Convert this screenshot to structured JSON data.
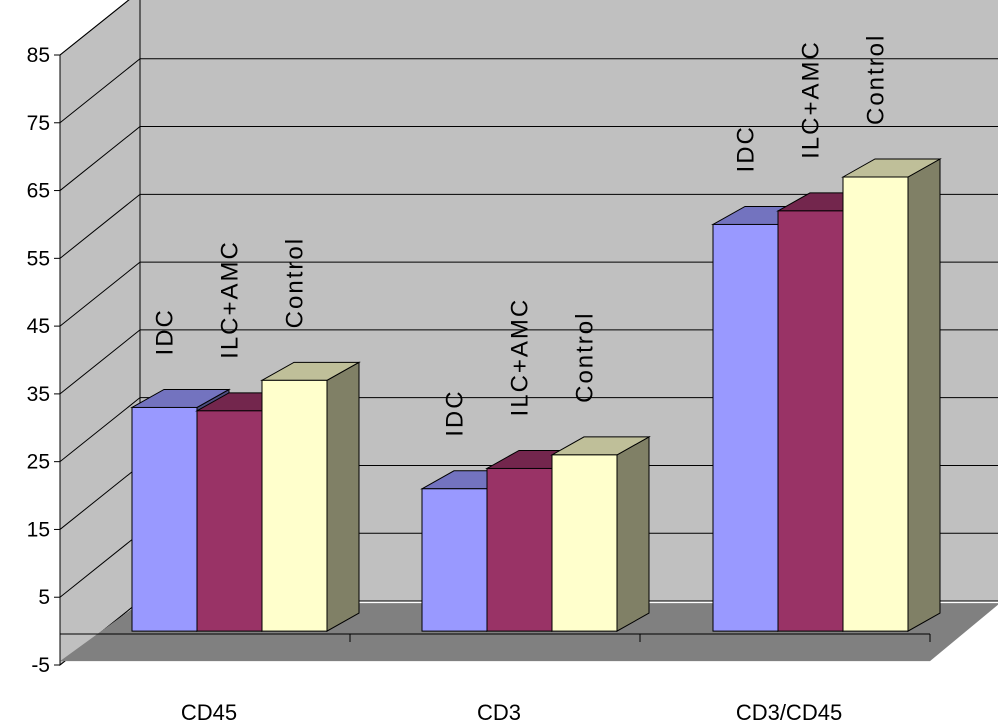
{
  "chart_data": {
    "type": "bar",
    "style": "3d-clustered-column",
    "categories": [
      "CD45",
      "CD3",
      "CD3/CD45"
    ],
    "series": [
      {
        "name": "IDC",
        "values": [
          33,
          21,
          60
        ],
        "color": "#9999FF"
      },
      {
        "name": "ILC+AMC",
        "values": [
          32.5,
          24,
          62
        ],
        "color": "#993366"
      },
      {
        "name": "Control",
        "values": [
          37,
          26,
          67
        ],
        "color": "#FFFFCC"
      }
    ],
    "y_ticks": [
      "-5",
      "5",
      "15",
      "25",
      "35",
      "45",
      "55",
      "65",
      "75",
      "85"
    ],
    "ylim": [
      -5,
      85
    ],
    "grid": true,
    "legend": "none",
    "colors": {
      "wall": "#C0C0C0",
      "floor": "#808080",
      "gridline": "#000000",
      "bar_outline": "#000000"
    }
  }
}
